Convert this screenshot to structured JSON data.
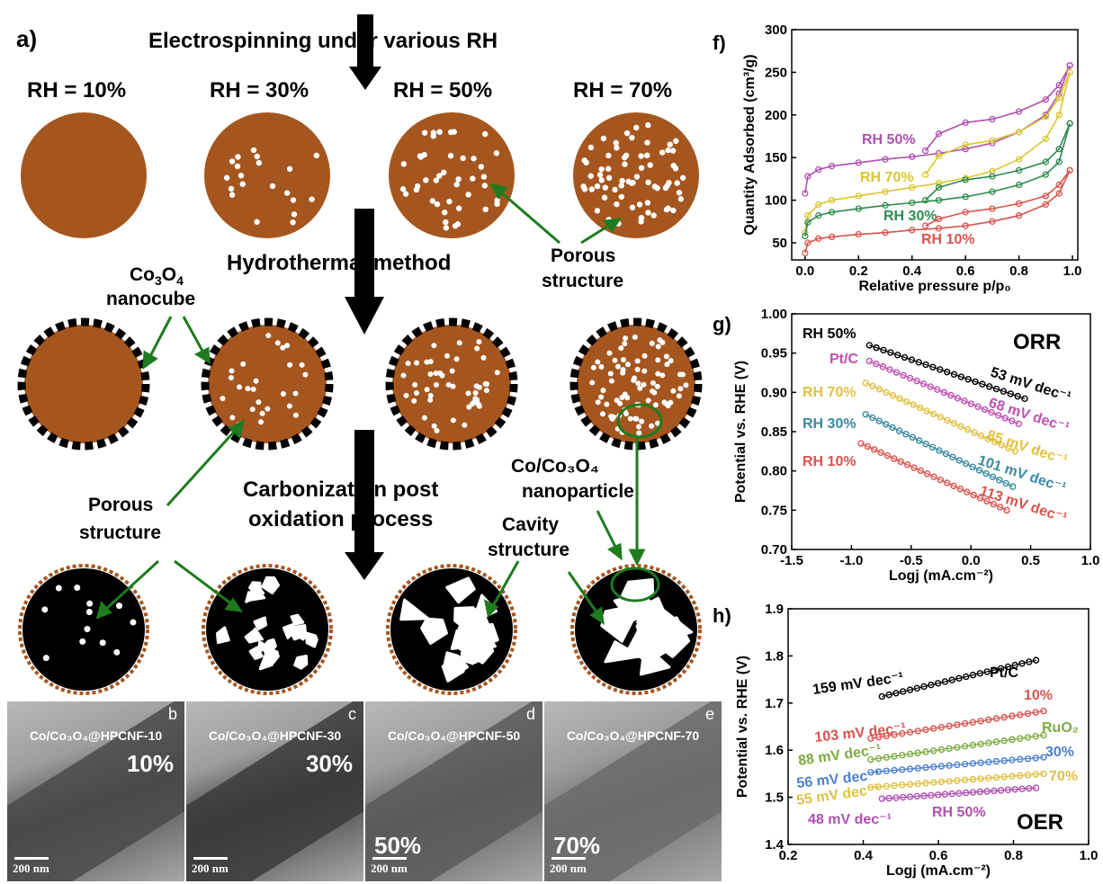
{
  "colors": {
    "brown": "#a5561f",
    "green": "#1e7b1e",
    "black": "#000000"
  },
  "panel_a": {
    "letter": "a)",
    "step1": "Electrospinning under various RH",
    "rh_labels": [
      "RH = 10%",
      "RH = 30%",
      "RH = 50%",
      "RH = 70%"
    ],
    "step2": "Hydrothermal method",
    "step3_line1": "Carbonization post",
    "step3_line2": "oxidation process",
    "porous_structure_1_line1": "Porous",
    "porous_structure_1_line2": "structure",
    "nanocube_line1_main": "Co",
    "nanocube_line1_sub1": "3",
    "nanocube_line1_mid": "O",
    "nanocube_line1_sub2": "4",
    "nanocube_line2": "nanocube",
    "porous_structure_2_line1": "Porous",
    "porous_structure_2_line2": "structure",
    "nanoparticle_line1": "Co/Co₃O₄",
    "nanoparticle_line2": "nanoparticle",
    "cavity_line1": "Cavity",
    "cavity_line2": "structure"
  },
  "tem": [
    {
      "letter": "b",
      "label": "Co/Co₃O₄@HPCNF-10",
      "pct": "10%",
      "scale": "200 nm"
    },
    {
      "letter": "c",
      "label": "Co/Co₃O₄@HPCNF-30",
      "pct": "30%",
      "scale": "200 nm"
    },
    {
      "letter": "d",
      "label": "Co/Co₃O₄@HPCNF-50",
      "pct": "50%",
      "scale": "200 nm"
    },
    {
      "letter": "e",
      "label": "Co/Co₃O₄@HPCNF-70",
      "pct": "70%",
      "scale": "200 nm"
    }
  ],
  "chart_data": [
    {
      "panel": "f)",
      "type": "line",
      "xlabel": "Relative pressure p/p₀",
      "ylabel": "Quantity Adsorbed (cm³/g)",
      "xlim": [
        -0.05,
        1.02
      ],
      "ylim": [
        30,
        300
      ],
      "xticks": [
        0.0,
        0.2,
        0.4,
        0.6,
        0.8,
        1.0
      ],
      "xtick_labels": [
        "0.0",
        "0.2",
        "0.4",
        "0.6",
        "0.8",
        "1.0"
      ],
      "yticks": [
        50,
        100,
        150,
        200,
        250,
        300
      ],
      "ytick_labels": [
        "50",
        "100",
        "150",
        "200",
        "250",
        "300"
      ],
      "series": [
        {
          "name": "RH 50%",
          "color": "#b04fb0",
          "adsorption": [
            [
              0.0,
              108
            ],
            [
              0.01,
              128
            ],
            [
              0.05,
              136
            ],
            [
              0.1,
              140
            ],
            [
              0.2,
              144
            ],
            [
              0.3,
              148
            ],
            [
              0.4,
              151
            ],
            [
              0.5,
              155
            ],
            [
              0.6,
              160
            ],
            [
              0.7,
              167
            ],
            [
              0.8,
              180
            ],
            [
              0.9,
              200
            ],
            [
              0.95,
              225
            ],
            [
              0.99,
              258
            ]
          ],
          "desorption": [
            [
              0.99,
              258
            ],
            [
              0.95,
              235
            ],
            [
              0.9,
              218
            ],
            [
              0.8,
              204
            ],
            [
              0.7,
              195
            ],
            [
              0.6,
              191
            ],
            [
              0.5,
              178
            ],
            [
              0.45,
              158
            ]
          ]
        },
        {
          "name": "RH 70%",
          "color": "#d8c630",
          "adsorption": [
            [
              0.0,
              62
            ],
            [
              0.01,
              82
            ],
            [
              0.05,
              95
            ],
            [
              0.1,
              100
            ],
            [
              0.2,
              105
            ],
            [
              0.3,
              110
            ],
            [
              0.4,
              115
            ],
            [
              0.5,
              120
            ],
            [
              0.6,
              126
            ],
            [
              0.7,
              134
            ],
            [
              0.8,
              148
            ],
            [
              0.9,
              172
            ],
            [
              0.95,
              200
            ],
            [
              0.99,
              250
            ]
          ],
          "desorption": [
            [
              0.99,
              250
            ],
            [
              0.95,
              220
            ],
            [
              0.9,
              198
            ],
            [
              0.8,
              180
            ],
            [
              0.7,
              170
            ],
            [
              0.6,
              165
            ],
            [
              0.5,
              152
            ],
            [
              0.45,
              130
            ]
          ]
        },
        {
          "name": "RH 30%",
          "color": "#2d8a4e",
          "adsorption": [
            [
              0.0,
              58
            ],
            [
              0.01,
              74
            ],
            [
              0.05,
              82
            ],
            [
              0.1,
              86
            ],
            [
              0.2,
              90
            ],
            [
              0.3,
              94
            ],
            [
              0.4,
              97
            ],
            [
              0.5,
              100
            ],
            [
              0.6,
              104
            ],
            [
              0.7,
              110
            ],
            [
              0.8,
              118
            ],
            [
              0.9,
              130
            ],
            [
              0.95,
              145
            ],
            [
              0.99,
              190
            ]
          ],
          "desorption": [
            [
              0.99,
              190
            ],
            [
              0.95,
              160
            ],
            [
              0.9,
              145
            ],
            [
              0.8,
              135
            ],
            [
              0.7,
              128
            ],
            [
              0.6,
              124
            ],
            [
              0.5,
              115
            ],
            [
              0.45,
              100
            ]
          ]
        },
        {
          "name": "RH 10%",
          "color": "#d9534f",
          "adsorption": [
            [
              0.0,
              38
            ],
            [
              0.01,
              50
            ],
            [
              0.05,
              55
            ],
            [
              0.1,
              57
            ],
            [
              0.2,
              60
            ],
            [
              0.3,
              62
            ],
            [
              0.4,
              65
            ],
            [
              0.5,
              67
            ],
            [
              0.6,
              70
            ],
            [
              0.7,
              75
            ],
            [
              0.8,
              82
            ],
            [
              0.9,
              95
            ],
            [
              0.95,
              108
            ],
            [
              0.99,
              135
            ]
          ],
          "desorption": [
            [
              0.99,
              135
            ],
            [
              0.95,
              118
            ],
            [
              0.9,
              105
            ],
            [
              0.8,
              96
            ],
            [
              0.7,
              90
            ],
            [
              0.6,
              86
            ],
            [
              0.5,
              78
            ],
            [
              0.45,
              70
            ]
          ]
        }
      ]
    },
    {
      "panel": "g)",
      "type": "scatter",
      "title": "ORR",
      "xlabel": "Logj (mA.cm⁻²)",
      "ylabel": "Potential vs. RHE (V)",
      "xlim": [
        -1.5,
        1.0
      ],
      "ylim": [
        0.7,
        1.0
      ],
      "xticks": [
        -1.5,
        -1.0,
        -0.5,
        0.0,
        0.5,
        1.0
      ],
      "xtick_labels": [
        "-1.5",
        "-1.0",
        "-0.5",
        "0.0",
        "0.5",
        "1.0"
      ],
      "yticks": [
        0.7,
        0.75,
        0.8,
        0.85,
        0.9,
        0.95,
        1.0
      ],
      "ytick_labels": [
        "0.70",
        "0.75",
        "0.80",
        "0.85",
        "0.90",
        "0.95",
        "1.00"
      ],
      "series": [
        {
          "name": "RH 50%",
          "slope": "53 mV dec⁻¹",
          "color": "#000000",
          "x0": -0.85,
          "y0": 0.96,
          "x1": 0.45,
          "y1": 0.892
        },
        {
          "name": "Pt/C",
          "slope": "68 mV dec⁻¹",
          "color": "#c04fb0",
          "x0": -0.85,
          "y0": 0.94,
          "x1": 0.4,
          "y1": 0.86
        },
        {
          "name": "RH 70%",
          "slope": "85 mV dec⁻¹",
          "color": "#e0c040",
          "x0": -0.88,
          "y0": 0.912,
          "x1": 0.37,
          "y1": 0.825
        },
        {
          "name": "RH 30%",
          "slope": "101 mV dec⁻¹",
          "color": "#3a8aa0",
          "x0": -0.88,
          "y0": 0.872,
          "x1": 0.35,
          "y1": 0.78
        },
        {
          "name": "RH 10%",
          "slope": "113 mV dec⁻¹",
          "color": "#d9534f",
          "x0": -0.92,
          "y0": 0.835,
          "x1": 0.3,
          "y1": 0.75
        }
      ]
    },
    {
      "panel": "h)",
      "type": "scatter",
      "title": "OER",
      "xlabel": "Logj (mA.cm⁻²)",
      "ylabel": "Potential vs. RHE (V)",
      "xlim": [
        0.2,
        1.0
      ],
      "ylim": [
        1.4,
        1.9
      ],
      "xticks": [
        0.2,
        0.4,
        0.6,
        0.8,
        1.0
      ],
      "xtick_labels": [
        "0.2",
        "0.4",
        "0.6",
        "0.8",
        "1.0"
      ],
      "yticks": [
        1.4,
        1.5,
        1.6,
        1.7,
        1.8,
        1.9
      ],
      "ytick_labels": [
        "1.4",
        "1.5",
        "1.6",
        "1.7",
        "1.8",
        "1.9"
      ],
      "series": [
        {
          "name": "Pt/C",
          "slope": "159 mV dec⁻¹",
          "color": "#000000",
          "x0": 0.45,
          "y0": 1.714,
          "x1": 0.86,
          "y1": 1.791
        },
        {
          "name": "10%",
          "slope": "103 mV dec⁻¹",
          "color": "#d9534f",
          "x0": 0.42,
          "y0": 1.625,
          "x1": 0.88,
          "y1": 1.683
        },
        {
          "name": "RuO₂",
          "slope": "88 mV dec⁻¹",
          "color": "#7bab3f",
          "x0": 0.42,
          "y0": 1.58,
          "x1": 0.88,
          "y1": 1.632
        },
        {
          "name": "30%",
          "slope": "56 mV dec⁻¹",
          "color": "#4a7fd0",
          "x0": 0.42,
          "y0": 1.553,
          "x1": 0.88,
          "y1": 1.585
        },
        {
          "name": "70%",
          "slope": "55 mV dec⁻¹",
          "color": "#e0c040",
          "x0": 0.42,
          "y0": 1.521,
          "x1": 0.88,
          "y1": 1.55
        },
        {
          "name": "RH 50%",
          "slope": "48 mV dec⁻¹",
          "color": "#b04fb0",
          "x0": 0.45,
          "y0": 1.497,
          "x1": 0.86,
          "y1": 1.52
        }
      ]
    }
  ]
}
